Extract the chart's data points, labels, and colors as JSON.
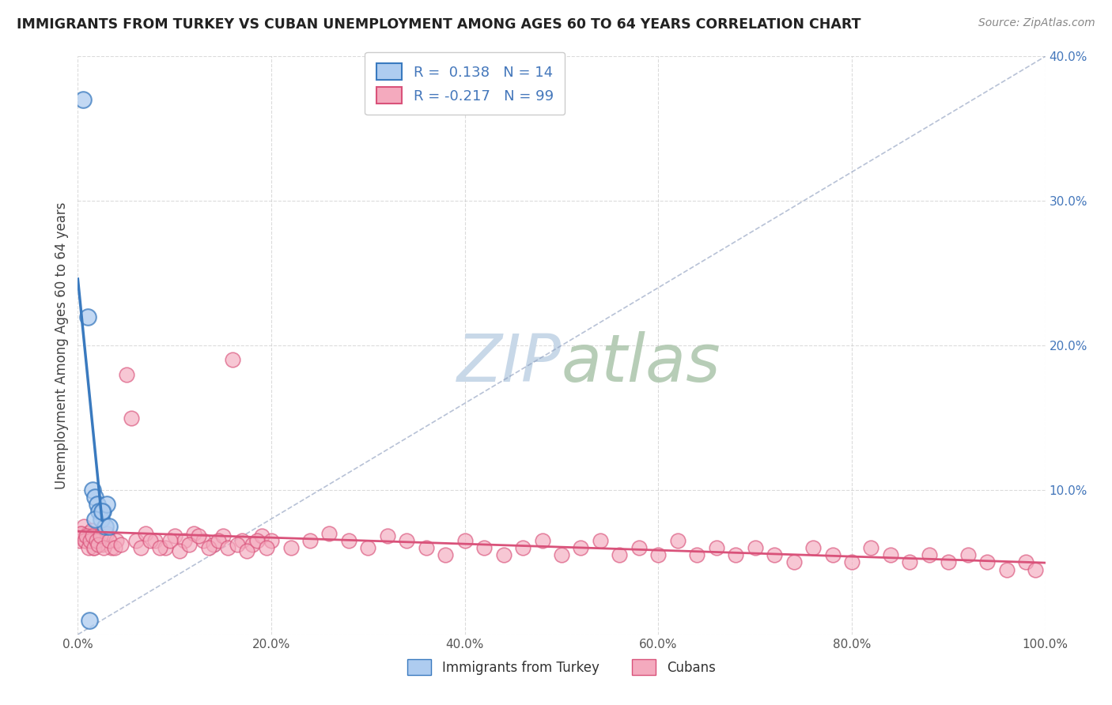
{
  "title": "IMMIGRANTS FROM TURKEY VS CUBAN UNEMPLOYMENT AMONG AGES 60 TO 64 YEARS CORRELATION CHART",
  "source": "Source: ZipAtlas.com",
  "ylabel": "Unemployment Among Ages 60 to 64 years",
  "xlim": [
    0.0,
    1.0
  ],
  "ylim": [
    0.0,
    0.4
  ],
  "xticks": [
    0.0,
    0.2,
    0.4,
    0.6,
    0.8,
    1.0
  ],
  "yticks": [
    0.0,
    0.1,
    0.2,
    0.3,
    0.4
  ],
  "xtick_labels": [
    "0.0%",
    "20.0%",
    "40.0%",
    "60.0%",
    "80.0%",
    "100.0%"
  ],
  "ytick_labels": [
    "",
    "10.0%",
    "20.0%",
    "30.0%",
    "40.0%"
  ],
  "legend_r1": "R =  0.138   N = 14",
  "legend_r2": "R = -0.217   N = 99",
  "series1_color": "#aeccf0",
  "series2_color": "#f4aabe",
  "line1_color": "#3a7abf",
  "line2_color": "#d9527a",
  "grid_color": "#cccccc",
  "watermark_color": "#c8d8e8",
  "title_color": "#222222",
  "source_color": "#888888",
  "ylabel_color": "#444444",
  "ytick_color": "#4477bb",
  "xtick_color": "#555555",
  "turkey_x": [
    0.005,
    0.01,
    0.015,
    0.018,
    0.02,
    0.022,
    0.024,
    0.026,
    0.028,
    0.03,
    0.018,
    0.025,
    0.032,
    0.012
  ],
  "turkey_y": [
    0.37,
    0.22,
    0.1,
    0.095,
    0.09,
    0.085,
    0.08,
    0.085,
    0.075,
    0.09,
    0.08,
    0.085,
    0.075,
    0.01
  ],
  "cuba_x": [
    0.002,
    0.004,
    0.006,
    0.008,
    0.01,
    0.012,
    0.014,
    0.016,
    0.018,
    0.02,
    0.025,
    0.03,
    0.035,
    0.04,
    0.05,
    0.06,
    0.07,
    0.08,
    0.09,
    0.1,
    0.11,
    0.12,
    0.13,
    0.14,
    0.15,
    0.16,
    0.17,
    0.18,
    0.19,
    0.2,
    0.22,
    0.24,
    0.26,
    0.28,
    0.3,
    0.32,
    0.34,
    0.36,
    0.38,
    0.4,
    0.42,
    0.44,
    0.46,
    0.48,
    0.5,
    0.52,
    0.54,
    0.56,
    0.58,
    0.6,
    0.62,
    0.64,
    0.66,
    0.68,
    0.7,
    0.72,
    0.74,
    0.76,
    0.78,
    0.8,
    0.82,
    0.84,
    0.86,
    0.88,
    0.9,
    0.92,
    0.94,
    0.96,
    0.98,
    0.99,
    0.003,
    0.007,
    0.009,
    0.011,
    0.013,
    0.015,
    0.017,
    0.019,
    0.021,
    0.023,
    0.027,
    0.032,
    0.038,
    0.045,
    0.055,
    0.065,
    0.075,
    0.085,
    0.095,
    0.105,
    0.115,
    0.125,
    0.135,
    0.145,
    0.155,
    0.165,
    0.175,
    0.185,
    0.195
  ],
  "cuba_y": [
    0.065,
    0.07,
    0.075,
    0.065,
    0.07,
    0.068,
    0.072,
    0.06,
    0.065,
    0.068,
    0.062,
    0.07,
    0.06,
    0.065,
    0.18,
    0.065,
    0.07,
    0.065,
    0.06,
    0.068,
    0.065,
    0.07,
    0.065,
    0.062,
    0.068,
    0.19,
    0.065,
    0.062,
    0.068,
    0.065,
    0.06,
    0.065,
    0.07,
    0.065,
    0.06,
    0.068,
    0.065,
    0.06,
    0.055,
    0.065,
    0.06,
    0.055,
    0.06,
    0.065,
    0.055,
    0.06,
    0.065,
    0.055,
    0.06,
    0.055,
    0.065,
    0.055,
    0.06,
    0.055,
    0.06,
    0.055,
    0.05,
    0.06,
    0.055,
    0.05,
    0.06,
    0.055,
    0.05,
    0.055,
    0.05,
    0.055,
    0.05,
    0.045,
    0.05,
    0.045,
    0.07,
    0.065,
    0.068,
    0.06,
    0.065,
    0.068,
    0.06,
    0.065,
    0.062,
    0.068,
    0.06,
    0.065,
    0.06,
    0.062,
    0.15,
    0.06,
    0.065,
    0.06,
    0.065,
    0.058,
    0.062,
    0.068,
    0.06,
    0.065,
    0.06,
    0.062,
    0.058,
    0.065,
    0.06
  ]
}
